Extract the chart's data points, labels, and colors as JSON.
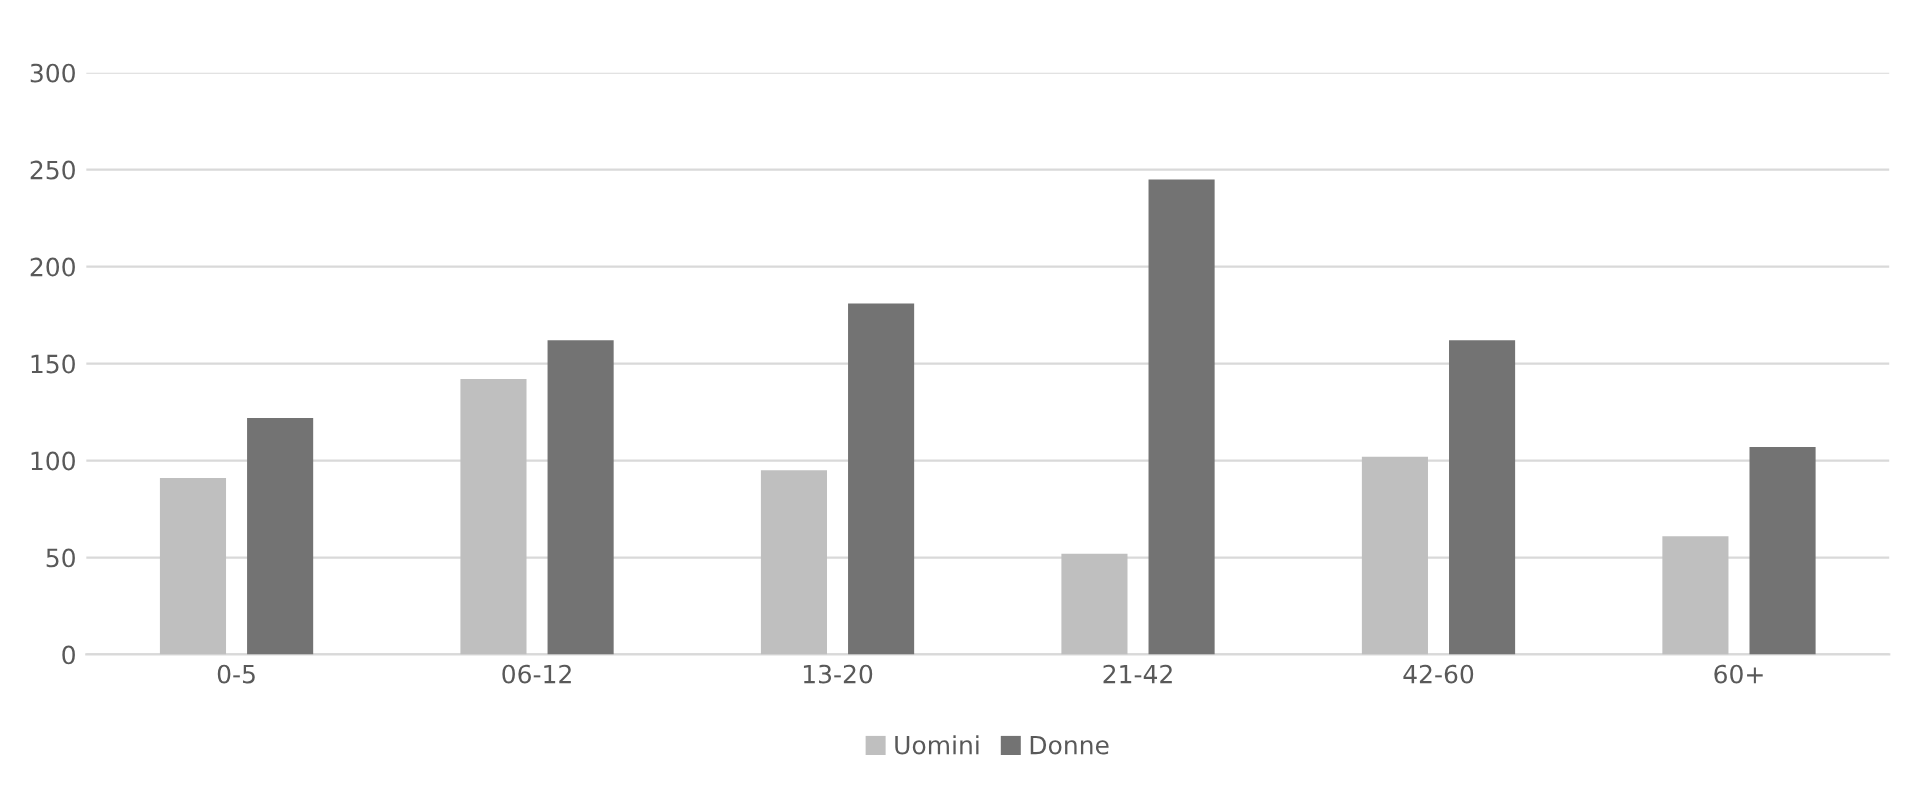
{
  "chart_data": {
    "type": "bar",
    "categories": [
      "0-5",
      "06-12",
      "13-20",
      "21-42",
      "42-60",
      "60+"
    ],
    "series": [
      {
        "name": "Uomini",
        "color": "#bfbfbf",
        "values": [
          91,
          142,
          95,
          52,
          102,
          61
        ]
      },
      {
        "name": "Donne",
        "color": "#737373",
        "values": [
          122,
          162,
          181,
          245,
          162,
          107
        ]
      }
    ],
    "ylim": [
      0,
      300
    ],
    "yticks": [
      0,
      50,
      100,
      150,
      200,
      250,
      300
    ],
    "grid": "y",
    "legend": "bottom"
  }
}
